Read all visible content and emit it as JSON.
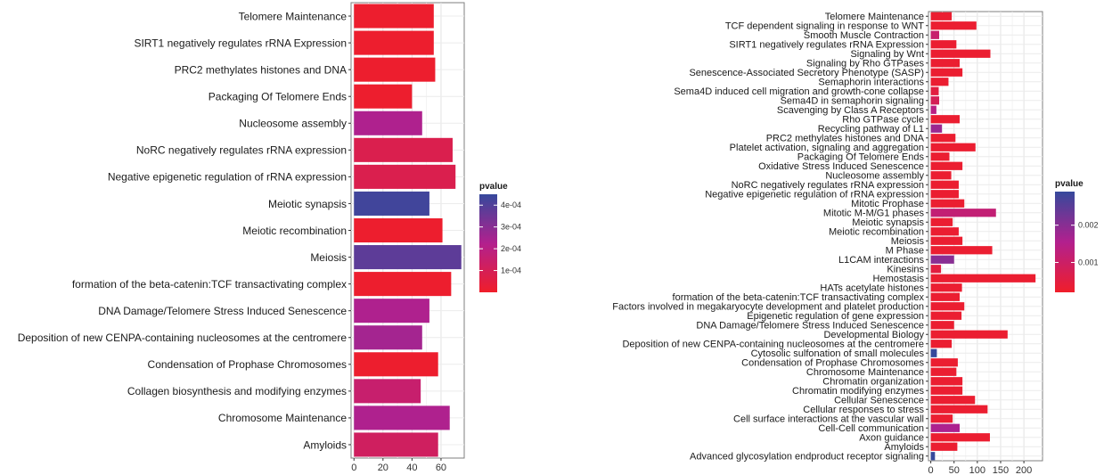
{
  "chart_data": [
    {
      "type": "bar",
      "orientation": "horizontal",
      "legend_title": "pvalue",
      "legend_ticks": [
        "4e-04",
        "3e-04",
        "2e-04",
        "1e-04"
      ],
      "legend_tick_values": [
        0.0004,
        0.0003,
        0.0002,
        0.0001
      ],
      "color_range": [
        0.0,
        0.00045
      ],
      "xticks": [
        0,
        20,
        40,
        60
      ],
      "xlim": [
        -2,
        76
      ],
      "grid": true,
      "categories": [
        "Telomere Maintenance",
        "SIRT1 negatively regulates rRNA Expression",
        "PRC2 methylates histones and DNA",
        "Packaging Of Telomere Ends",
        "Nucleosome assembly",
        "NoRC negatively regulates rRNA expression",
        "Negative epigenetic regulation of rRNA expression",
        "Meiotic synapsis",
        "Meiotic recombination",
        "Meiosis",
        "formation of the beta-catenin:TCF transactivating complex",
        "DNA Damage/Telomere Stress Induced Senescence",
        "Deposition of new CENPA-containing nucleosomes at the centromere",
        "Condensation of Prophase Chromosomes",
        "Collagen biosynthesis and modifying enzymes",
        "Chromosome Maintenance",
        "Amyloids"
      ],
      "values": [
        55,
        55,
        56,
        40,
        47,
        68,
        70,
        52,
        61,
        74,
        67,
        52,
        47,
        58,
        46,
        66,
        58
      ],
      "pvalues": [
        1e-05,
        1e-05,
        1e-05,
        1e-05,
        0.00023,
        8e-05,
        8e-05,
        0.00043,
        1e-05,
        0.00038,
        1e-05,
        0.00023,
        0.00025,
        1e-05,
        0.00015,
        0.00023,
        0.00012
      ]
    },
    {
      "type": "bar",
      "orientation": "horizontal",
      "legend_title": "pvalue",
      "legend_ticks": [
        "0.002",
        "0.001"
      ],
      "legend_tick_values": [
        0.002,
        0.001
      ],
      "color_range": [
        0.0002,
        0.0029
      ],
      "xticks": [
        0,
        50,
        100,
        150,
        200
      ],
      "xlim": [
        -5,
        240
      ],
      "grid": true,
      "categories": [
        "Telomere Maintenance",
        "TCF dependent signaling in response to WNT",
        "Smooth Muscle Contraction",
        "SIRT1 negatively regulates rRNA Expression",
        "Signaling by Wnt",
        "Signaling by Rho GTPases",
        "Senescence-Associated Secretory Phenotype (SASP)",
        "Semaphorin interactions",
        "Sema4D induced cell migration and growth-cone collapse",
        "Sema4D in semaphorin signaling",
        "Scavenging by Class A Receptors",
        "Rho GTPase cycle",
        "Recycling pathway of L1",
        "PRC2 methylates histones and DNA",
        "Platelet activation, signaling and aggregation",
        "Packaging Of Telomere Ends",
        "Oxidative Stress Induced Senescence",
        "Nucleosome assembly",
        "NoRC negatively regulates rRNA expression",
        "Negative epigenetic regulation of rRNA expression",
        "Mitotic Prophase",
        "Mitotic M-M/G1 phases",
        "Meiotic synapsis",
        "Meiotic recombination",
        "Meiosis",
        "M Phase",
        "L1CAM interactions",
        "Kinesins",
        "Hemostasis",
        "HATs acetylate histones",
        "formation of the beta-catenin:TCF transactivating complex",
        "Factors involved in megakaryocyte development and platelet production",
        "Epigenetic regulation of gene expression",
        "DNA Damage/Telomere Stress Induced Senescence",
        "Developmental Biology",
        "Deposition of new CENPA-containing nucleosomes at the centromere",
        "Cytosolic sulfonation of small molecules",
        "Condensation of Prophase Chromosomes",
        "Chromosome Maintenance",
        "Chromatin organization",
        "Chromatin modifying enzymes",
        "Cellular Senescence",
        "Cellular responses to stress",
        "Cell surface interactions at the vascular wall",
        "Cell-Cell communication",
        "Axon guidance",
        "Amyloids",
        "Advanced glycosylation endproduct receptor signaling"
      ],
      "values": [
        45,
        98,
        18,
        55,
        128,
        62,
        68,
        38,
        17,
        18,
        12,
        62,
        24,
        53,
        96,
        40,
        68,
        44,
        60,
        60,
        72,
        140,
        47,
        60,
        68,
        132,
        50,
        22,
        225,
        67,
        62,
        72,
        66,
        50,
        165,
        45,
        13,
        58,
        55,
        68,
        68,
        95,
        122,
        47,
        62,
        127,
        57,
        9
      ],
      "pvalues": [
        0.0003,
        0.0003,
        0.0011,
        0.0003,
        0.0003,
        0.0003,
        0.0003,
        0.0003,
        0.0005,
        0.0008,
        0.0014,
        0.0003,
        0.0018,
        0.0003,
        0.0003,
        0.0003,
        0.0003,
        0.0003,
        0.0003,
        0.0003,
        0.0003,
        0.0012,
        0.0003,
        0.0003,
        0.0003,
        0.0003,
        0.002,
        0.0005,
        0.0003,
        0.0003,
        0.0003,
        0.0003,
        0.0003,
        0.0003,
        0.0003,
        0.0003,
        0.0029,
        0.0003,
        0.0003,
        0.0003,
        0.0003,
        0.0003,
        0.0003,
        0.0003,
        0.0016,
        0.0003,
        0.0003,
        0.0029
      ]
    }
  ]
}
